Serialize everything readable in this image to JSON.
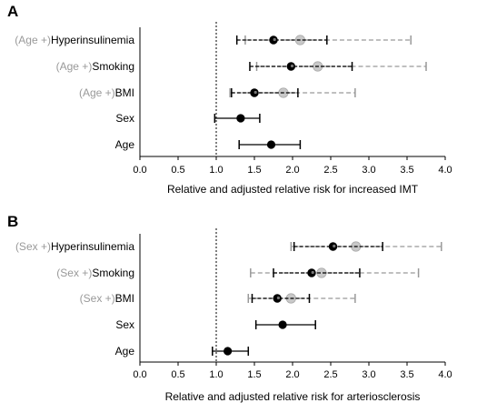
{
  "colors": {
    "adjusted": "#999999",
    "crude": "#000000",
    "adjusted_fill": "#c8c8c8",
    "crude_fill": "#000000"
  },
  "chart_data": [
    {
      "type": "forest",
      "panel": "A",
      "xlabel": "Relative and adjusted relative risk for increased IMT",
      "xlim": [
        0,
        4
      ],
      "xticks": [
        "0.0",
        "0.5",
        "1.0",
        "1.5",
        "2.0",
        "2.5",
        "3.0",
        "3.5",
        "4.0"
      ],
      "reference_line": 1.0,
      "rows": [
        {
          "prefix": "(Age +)",
          "label": "Hyperinsulinemia",
          "crude": {
            "est": 1.75,
            "lo": 1.27,
            "hi": 2.45
          },
          "adjusted": {
            "est": 2.1,
            "lo": 1.38,
            "hi": 3.55
          }
        },
        {
          "prefix": "(Age +)",
          "label": "Smoking",
          "crude": {
            "est": 1.98,
            "lo": 1.44,
            "hi": 2.78
          },
          "adjusted": {
            "est": 2.33,
            "lo": 1.53,
            "hi": 3.75
          }
        },
        {
          "prefix": "(Age +)",
          "label": "BMI",
          "crude": {
            "est": 1.5,
            "lo": 1.2,
            "hi": 2.07
          },
          "adjusted": {
            "est": 1.88,
            "lo": 1.18,
            "hi": 2.82
          }
        },
        {
          "prefix": "",
          "label": "Sex",
          "crude": {
            "est": 1.32,
            "lo": 0.98,
            "hi": 1.57
          }
        },
        {
          "prefix": "",
          "label": "Age",
          "crude": {
            "est": 1.72,
            "lo": 1.3,
            "hi": 2.1
          }
        }
      ]
    },
    {
      "type": "forest",
      "panel": "B",
      "xlabel": "Relative and adjusted relative risk for arteriosclerosis",
      "xlim": [
        0,
        4
      ],
      "xticks": [
        "0.0",
        "0.5",
        "1.0",
        "1.5",
        "2.0",
        "2.5",
        "3.0",
        "3.5",
        "4.0"
      ],
      "reference_line": 1.0,
      "rows": [
        {
          "prefix": "(Sex +)",
          "label": "Hyperinsulinemia",
          "crude": {
            "est": 2.53,
            "lo": 2.02,
            "hi": 3.18
          },
          "adjusted": {
            "est": 2.83,
            "lo": 1.98,
            "hi": 3.95
          }
        },
        {
          "prefix": "(Sex +)",
          "label": "Smoking",
          "crude": {
            "est": 2.25,
            "lo": 1.75,
            "hi": 2.88
          },
          "adjusted": {
            "est": 2.38,
            "lo": 1.45,
            "hi": 3.65
          }
        },
        {
          "prefix": "(Sex +)",
          "label": "BMI",
          "crude": {
            "est": 1.8,
            "lo": 1.47,
            "hi": 2.22
          },
          "adjusted": {
            "est": 1.98,
            "lo": 1.42,
            "hi": 2.82
          }
        },
        {
          "prefix": "",
          "label": "Sex",
          "crude": {
            "est": 1.87,
            "lo": 1.52,
            "hi": 2.3
          }
        },
        {
          "prefix": "",
          "label": "Age",
          "crude": {
            "est": 1.15,
            "lo": 0.95,
            "hi": 1.42
          }
        }
      ]
    }
  ]
}
